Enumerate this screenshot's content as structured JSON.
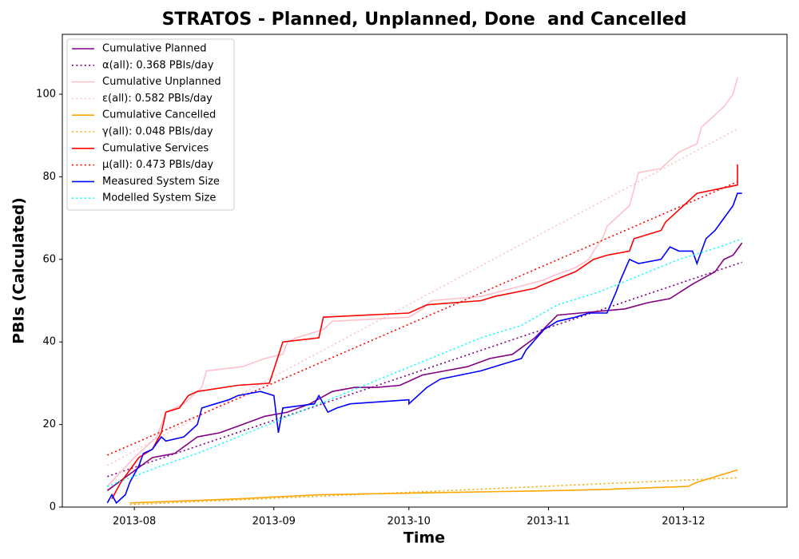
{
  "chart_data": {
    "type": "line",
    "title": "STRATOS - Planned, Unplanned, Done  and Cancelled",
    "x_label": "Time",
    "y_label": "PBIs (Calculated)",
    "xlim": [
      197,
      358
    ],
    "xticks": [
      {
        "value": 213,
        "label": "2013-08"
      },
      {
        "value": 244,
        "label": "2013-09"
      },
      {
        "value": 274,
        "label": "2013-10"
      },
      {
        "value": 305,
        "label": "2013-11"
      },
      {
        "value": 335,
        "label": "2013-12"
      }
    ],
    "ylim": [
      0,
      114.5
    ],
    "yticks": [
      0,
      20,
      40,
      60,
      80,
      100
    ],
    "grid": false,
    "legend": "upper left",
    "series": [
      {
        "name": "Cumulative Planned",
        "color": "#800080",
        "linestyle": "solid",
        "x": [
          207,
          212,
          217,
          222,
          227,
          232,
          237,
          242,
          247,
          252,
          257,
          262,
          267,
          272,
          277,
          282,
          287,
          292,
          297,
          302,
          307,
          312,
          317,
          322,
          327,
          332,
          337,
          342,
          344,
          346,
          348
        ],
        "values": [
          4,
          8,
          12,
          13,
          17,
          18,
          20,
          22,
          23,
          25,
          28,
          29,
          29,
          29.5,
          32,
          33,
          34,
          36,
          37,
          41,
          46.5,
          47,
          47.5,
          48,
          49.5,
          50.5,
          54,
          57,
          60,
          61,
          64
        ]
      },
      {
        "name": "α(all): 0.368 PBIs/day",
        "color": "#800080",
        "linestyle": "dotted",
        "x": [
          207,
          348
        ],
        "values": [
          7.4,
          59.3
        ]
      },
      {
        "name": "Cumulative Unplanned",
        "color": "#ffc0cb",
        "linestyle": "solid",
        "x": [
          207,
          213,
          218,
          220,
          222,
          224,
          227,
          228,
          229,
          237,
          242,
          246,
          247,
          249,
          255,
          257,
          274,
          277,
          279,
          290,
          297,
          304,
          306,
          311,
          314,
          315,
          317,
          318,
          320,
          323,
          324,
          325,
          330,
          332,
          334,
          338,
          339,
          341,
          344,
          346,
          347
        ],
        "values": [
          5,
          12,
          17,
          23,
          24,
          25,
          28,
          29,
          33,
          34,
          36,
          37,
          40,
          41,
          43,
          45,
          46,
          48,
          50,
          51,
          53,
          55,
          56,
          58,
          60,
          62,
          65,
          68,
          70,
          73,
          77,
          81,
          82,
          84,
          86,
          88,
          92,
          94,
          97,
          100,
          104
        ]
      },
      {
        "name": "ε(all): 0.582 PBIs/day",
        "color": "#ffc0cb",
        "linestyle": "dotted",
        "x": [
          207,
          347
        ],
        "values": [
          10.1,
          91.6
        ]
      },
      {
        "name": "Cumulative Cancelled",
        "color": "#ffa500",
        "linestyle": "solid",
        "x": [
          212,
          236,
          254,
          307,
          318,
          336,
          338,
          344,
          347
        ],
        "values": [
          1,
          2,
          3,
          4,
          4.3,
          5,
          6,
          8,
          9
        ]
      },
      {
        "name": "γ(all): 0.048 PBIs/day",
        "color": "#ffa500",
        "linestyle": "dotted",
        "x": [
          212,
          347
        ],
        "values": [
          0.6,
          7.1
        ]
      },
      {
        "name": "Cumulative Services",
        "color": "#ff0000",
        "linestyle": "solid",
        "x": [
          208,
          210,
          212,
          214,
          217,
          219,
          220,
          223,
          225,
          227,
          236,
          243,
          246,
          254,
          255,
          274,
          278,
          290,
          293,
          302,
          304,
          311,
          315,
          318,
          323,
          324,
          330,
          331,
          334,
          336,
          337,
          338,
          347,
          347
        ],
        "values": [
          2,
          6,
          9,
          12,
          14,
          18,
          23,
          24,
          27,
          28,
          29.5,
          30,
          40,
          41,
          46,
          47,
          49,
          50,
          51,
          53,
          54,
          57,
          60,
          61,
          62,
          65,
          67,
          69,
          72,
          74,
          75,
          76,
          78,
          83
        ]
      },
      {
        "name": "μ(all): 0.473 PBIs/day",
        "color": "#ff0000",
        "linestyle": "dotted",
        "x": [
          207,
          347
        ],
        "values": [
          12.6,
          78.8
        ]
      },
      {
        "name": "Measured System Size",
        "color": "#0000ff",
        "linestyle": "solid",
        "x": [
          207,
          208,
          209,
          211,
          212,
          214,
          215,
          217,
          219,
          220,
          224,
          227,
          228,
          231,
          234,
          236,
          241,
          244,
          245,
          246,
          253,
          254,
          256,
          258,
          261,
          274,
          274,
          278,
          281,
          290,
          299,
          300,
          304,
          307,
          311,
          314,
          318,
          320,
          321,
          323,
          325,
          330,
          332,
          334,
          337,
          338,
          340,
          342,
          344,
          346,
          347,
          348
        ],
        "values": [
          1,
          3,
          1,
          3,
          6,
          10,
          13,
          14,
          17,
          16,
          17,
          20,
          24,
          25,
          26,
          27,
          28,
          27,
          18,
          24,
          25,
          27,
          23,
          24,
          25,
          26,
          25,
          29,
          31,
          33,
          36,
          38,
          43,
          45,
          46,
          47,
          47,
          52,
          55,
          60,
          59,
          60,
          63,
          62,
          62,
          59,
          65,
          67,
          70,
          73,
          76,
          76
        ]
      },
      {
        "name": "Modelled System Size",
        "color": "#00ffff",
        "linestyle": "dotted",
        "x": [
          207,
          219,
          227,
          236,
          245,
          254,
          263,
          272,
          281,
          290,
          299,
          307,
          316,
          325,
          334,
          343,
          348
        ],
        "values": [
          5,
          10,
          13,
          17,
          21,
          25,
          29,
          33,
          37,
          41,
          44,
          49,
          52,
          56,
          60,
          63,
          65
        ]
      }
    ]
  }
}
